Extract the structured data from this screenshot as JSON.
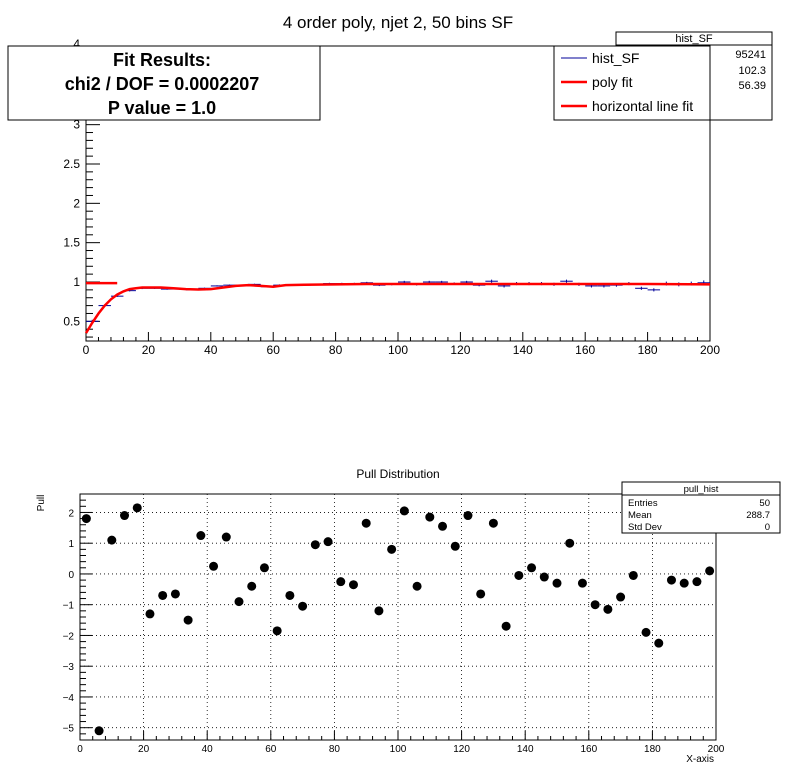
{
  "chart_data": [
    {
      "type": "line",
      "title": "4 order poly, njet 2, 50 bins SF",
      "xlim": [
        0,
        200
      ],
      "ylim": [
        0.25,
        4.0
      ],
      "xticks": [
        0,
        20,
        40,
        60,
        80,
        100,
        120,
        140,
        160,
        180,
        200
      ],
      "yticks": [
        0.5,
        1,
        1.5,
        2,
        2.5,
        3
      ],
      "ytick_labels": [
        "0.5",
        "1",
        "1.5",
        "2",
        "2.5",
        "3"
      ],
      "top_tick_partial": "4",
      "grid": false,
      "legend_position": "top-right",
      "fit_box": {
        "line1": "Fit Results:",
        "line2": "chi2 / DOF = 0.0002207",
        "line3": "P value = 1.0"
      },
      "stats_box": {
        "title": "hist_SF",
        "values": [
          "95241",
          "102.3",
          "56.39"
        ]
      },
      "series": [
        {
          "name": "hist_SF",
          "color": "#000099",
          "style": "histogram-errorbars",
          "bin_width": 4,
          "x": [
            2,
            6,
            10,
            14,
            18,
            22,
            26,
            30,
            34,
            38,
            42,
            46,
            50,
            54,
            58,
            62,
            66,
            70,
            74,
            78,
            82,
            86,
            90,
            94,
            98,
            102,
            106,
            110,
            114,
            118,
            122,
            126,
            130,
            134,
            138,
            142,
            146,
            150,
            154,
            158,
            162,
            166,
            170,
            174,
            178,
            182,
            186,
            190,
            194,
            198
          ],
          "y": [
            0.5,
            0.7,
            0.82,
            0.89,
            0.92,
            0.92,
            0.91,
            0.91,
            0.9,
            0.92,
            0.95,
            0.96,
            0.96,
            0.97,
            0.94,
            0.96,
            0.96,
            0.96,
            0.97,
            0.98,
            0.98,
            0.98,
            0.99,
            0.96,
            0.97,
            1.0,
            0.97,
            1.0,
            1.0,
            0.98,
            1.0,
            0.96,
            1.01,
            0.95,
            0.98,
            0.98,
            0.98,
            0.97,
            1.01,
            0.97,
            0.95,
            0.95,
            0.96,
            0.98,
            0.92,
            0.9,
            0.98,
            0.97,
            0.98,
            0.99
          ],
          "yerr": [
            0.02,
            0.015,
            0.01,
            0.01,
            0.01,
            0.008,
            0.008,
            0.008,
            0.008,
            0.008,
            0.008,
            0.008,
            0.008,
            0.008,
            0.01,
            0.01,
            0.01,
            0.01,
            0.01,
            0.01,
            0.01,
            0.01,
            0.012,
            0.012,
            0.012,
            0.015,
            0.015,
            0.015,
            0.015,
            0.015,
            0.015,
            0.015,
            0.02,
            0.02,
            0.02,
            0.02,
            0.02,
            0.02,
            0.02,
            0.02,
            0.02,
            0.02,
            0.02,
            0.02,
            0.02,
            0.02,
            0.025,
            0.025,
            0.025,
            0.03
          ]
        },
        {
          "name": "poly fit",
          "color": "#ff0000",
          "x": [
            0,
            2,
            4,
            6,
            8,
            10,
            12,
            14,
            16,
            18,
            20,
            24,
            28,
            32,
            36,
            40,
            44,
            48,
            52,
            56,
            60,
            64,
            70,
            80,
            90,
            100,
            120,
            140,
            160,
            180,
            200
          ],
          "y": [
            0.35,
            0.48,
            0.6,
            0.7,
            0.78,
            0.84,
            0.88,
            0.91,
            0.92,
            0.93,
            0.93,
            0.93,
            0.92,
            0.91,
            0.905,
            0.91,
            0.93,
            0.95,
            0.96,
            0.95,
            0.94,
            0.96,
            0.965,
            0.97,
            0.975,
            0.975,
            0.975,
            0.975,
            0.975,
            0.975,
            0.97
          ]
        },
        {
          "name": "horizontal line fit",
          "color": "#ff0000",
          "x": [
            0,
            10
          ],
          "y": [
            0.985,
            0.985
          ]
        }
      ]
    },
    {
      "type": "scatter",
      "title": "Pull Distribution",
      "xlabel": "X-axis",
      "ylabel": "Pull",
      "xlim": [
        0,
        200
      ],
      "ylim": [
        -5.4,
        2.6
      ],
      "xticks": [
        0,
        20,
        40,
        60,
        80,
        100,
        120,
        140,
        160,
        180,
        200
      ],
      "yticks": [
        -5,
        -4,
        -3,
        -2,
        -1,
        0,
        1,
        2
      ],
      "ytick_labels": [
        "−5",
        "−4",
        "−3",
        "−2",
        "−1",
        "0",
        "1",
        "2"
      ],
      "grid": true,
      "stats_box": {
        "title": "pull_hist",
        "rows": [
          {
            "label": "Entries",
            "value": "50"
          },
          {
            "label": "Mean",
            "value": "288.7"
          },
          {
            "label": "Std Dev",
            "value": "0"
          }
        ]
      },
      "series": [
        {
          "color": "#000000",
          "x": [
            2,
            6,
            10,
            14,
            18,
            22,
            26,
            30,
            34,
            38,
            42,
            46,
            50,
            54,
            58,
            62,
            66,
            70,
            74,
            78,
            82,
            86,
            90,
            94,
            98,
            102,
            106,
            110,
            114,
            118,
            122,
            126,
            130,
            134,
            138,
            142,
            146,
            150,
            154,
            158,
            162,
            166,
            170,
            174,
            178,
            182,
            186,
            190,
            194,
            198
          ],
          "y": [
            1.8,
            -5.1,
            1.1,
            1.9,
            2.15,
            -1.3,
            -0.7,
            -0.65,
            -1.5,
            1.25,
            0.25,
            1.2,
            -0.9,
            -0.4,
            0.2,
            -1.85,
            -0.7,
            -1.05,
            0.95,
            1.05,
            -0.25,
            -0.35,
            1.65,
            -1.2,
            0.8,
            2.05,
            -0.4,
            1.85,
            1.55,
            0.9,
            1.9,
            -0.65,
            1.65,
            -1.7,
            -0.05,
            0.2,
            -0.1,
            -0.3,
            1.0,
            -0.3,
            -1.0,
            -1.15,
            -0.75,
            -0.05,
            -1.9,
            -2.25,
            -0.2,
            -0.3,
            -0.25,
            0.1
          ]
        }
      ]
    }
  ]
}
